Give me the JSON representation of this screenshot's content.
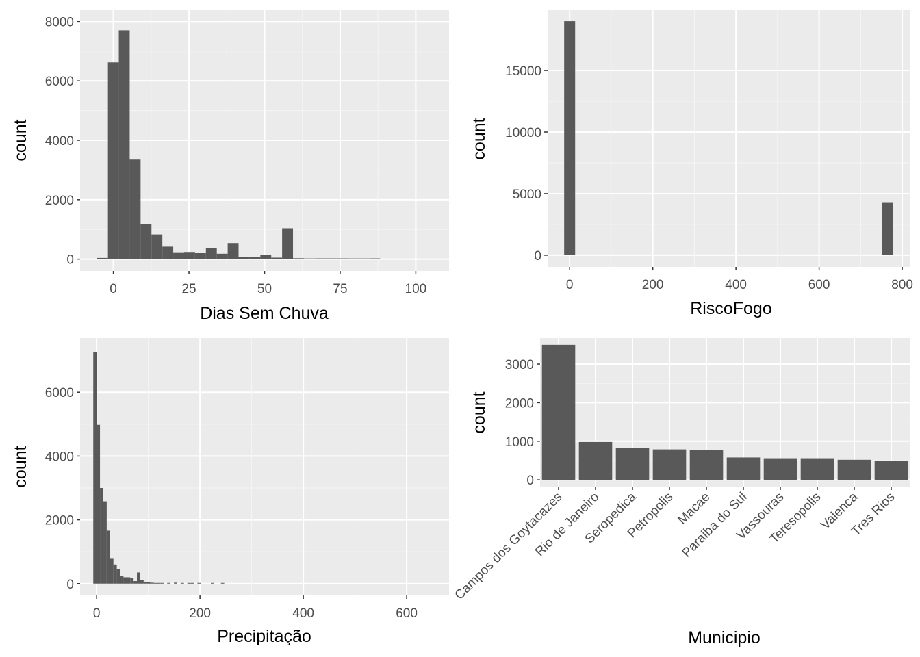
{
  "colors": {
    "panel_bg": "#ebebeb",
    "grid_major": "#ffffff",
    "grid_minor": "#f5f5f5",
    "bar": "#595959",
    "tick_text": "#4d4d4d",
    "axis_title": "#000000"
  },
  "chart_data": [
    {
      "id": "dias",
      "type": "bar",
      "subtype": "histogram",
      "xlabel": "Dias Sem Chuva",
      "ylabel": "count",
      "xlim": [
        -11,
        111
      ],
      "ylim": [
        -400,
        8400
      ],
      "xticks": [
        0,
        25,
        50,
        75,
        100
      ],
      "xtick_labels": [
        "0",
        "25",
        "50",
        "75",
        "100"
      ],
      "yticks": [
        0,
        2000,
        4000,
        6000,
        8000
      ],
      "ytick_labels": [
        "0",
        "2000",
        "4000",
        "6000",
        "8000"
      ],
      "bin_width": 3.6,
      "bins": [
        {
          "x": -3.6,
          "count": 40
        },
        {
          "x": 0,
          "count": 6620
        },
        {
          "x": 3.6,
          "count": 7700
        },
        {
          "x": 7.2,
          "count": 3350
        },
        {
          "x": 10.8,
          "count": 1170
        },
        {
          "x": 14.4,
          "count": 830
        },
        {
          "x": 18,
          "count": 420
        },
        {
          "x": 21.6,
          "count": 230
        },
        {
          "x": 25.2,
          "count": 240
        },
        {
          "x": 28.8,
          "count": 200
        },
        {
          "x": 32.4,
          "count": 380
        },
        {
          "x": 36,
          "count": 180
        },
        {
          "x": 39.6,
          "count": 540
        },
        {
          "x": 43.2,
          "count": 70
        },
        {
          "x": 46.8,
          "count": 80
        },
        {
          "x": 50.4,
          "count": 140
        },
        {
          "x": 54,
          "count": 50
        },
        {
          "x": 57.6,
          "count": 1040
        },
        {
          "x": 61.2,
          "count": 30
        },
        {
          "x": 64.8,
          "count": 5
        },
        {
          "x": 68.4,
          "count": 25
        },
        {
          "x": 72,
          "count": 25
        },
        {
          "x": 75.6,
          "count": 25
        },
        {
          "x": 79.2,
          "count": 5
        },
        {
          "x": 82.8,
          "count": 5
        },
        {
          "x": 86.4,
          "count": 25
        }
      ]
    },
    {
      "id": "risco",
      "type": "bar",
      "subtype": "histogram",
      "xlabel": "RiscoFogo",
      "ylabel": "count",
      "xlim": [
        -53,
        818
      ],
      "ylim": [
        -950,
        19950
      ],
      "xticks": [
        0,
        200,
        400,
        600,
        800
      ],
      "xtick_labels": [
        "0",
        "200",
        "400",
        "600",
        "800"
      ],
      "yticks": [
        0,
        5000,
        10000,
        15000
      ],
      "ytick_labels": [
        "0",
        "5000",
        "10000",
        "15000"
      ],
      "bin_width": 26.4,
      "bins": [
        {
          "x": 0,
          "count": 19000
        },
        {
          "x": 765,
          "count": 4300
        }
      ]
    },
    {
      "id": "precip",
      "type": "bar",
      "subtype": "histogram",
      "xlabel": "Precipitação",
      "ylabel": "count",
      "xlim": [
        -32,
        682
      ],
      "ylim": [
        -370,
        7700
      ],
      "xticks": [
        0,
        200,
        400,
        600
      ],
      "xtick_labels": [
        "0",
        "200",
        "400",
        "600"
      ],
      "yticks": [
        0,
        2000,
        4000,
        6000
      ],
      "ytick_labels": [
        "0",
        "2000",
        "4000",
        "6000"
      ],
      "bin_width": 6.5,
      "bins": [
        {
          "x": -3.25,
          "count": 7250
        },
        {
          "x": 3.25,
          "count": 4980
        },
        {
          "x": 9.75,
          "count": 3000
        },
        {
          "x": 16.25,
          "count": 2580
        },
        {
          "x": 22.75,
          "count": 1660
        },
        {
          "x": 29.25,
          "count": 780
        },
        {
          "x": 35.75,
          "count": 600
        },
        {
          "x": 42.25,
          "count": 460
        },
        {
          "x": 48.75,
          "count": 230
        },
        {
          "x": 55.25,
          "count": 200
        },
        {
          "x": 61.75,
          "count": 200
        },
        {
          "x": 68.25,
          "count": 170
        },
        {
          "x": 74.75,
          "count": 80
        },
        {
          "x": 81.25,
          "count": 350
        },
        {
          "x": 87.75,
          "count": 120
        },
        {
          "x": 94.25,
          "count": 60
        },
        {
          "x": 100.75,
          "count": 50
        },
        {
          "x": 107.25,
          "count": 30
        },
        {
          "x": 113.75,
          "count": 20
        },
        {
          "x": 120.25,
          "count": 20
        },
        {
          "x": 126.75,
          "count": 15
        },
        {
          "x": 139.75,
          "count": 10
        },
        {
          "x": 152.75,
          "count": 30
        },
        {
          "x": 165.75,
          "count": 10
        },
        {
          "x": 178.75,
          "count": 20
        },
        {
          "x": 185.25,
          "count": 15
        },
        {
          "x": 198.25,
          "count": 10
        },
        {
          "x": 224.25,
          "count": 15
        },
        {
          "x": 243.75,
          "count": 20
        }
      ]
    },
    {
      "id": "municipio",
      "type": "bar",
      "xlabel": "Municipio",
      "ylabel": "count",
      "ylim": [
        -175,
        3675
      ],
      "yticks": [
        0,
        1000,
        2000,
        3000
      ],
      "ytick_labels": [
        "0",
        "1000",
        "2000",
        "3000"
      ],
      "categories": [
        "Campos dos Goytacazes",
        "Rio de Janeiro",
        "Seropedica",
        "Petropolis",
        "Macae",
        "Paraiba do Sul",
        "Vassouras",
        "Teresopolis",
        "Valenca",
        "Tres Rios"
      ],
      "values": [
        3500,
        980,
        820,
        790,
        770,
        580,
        560,
        560,
        520,
        490
      ]
    }
  ]
}
